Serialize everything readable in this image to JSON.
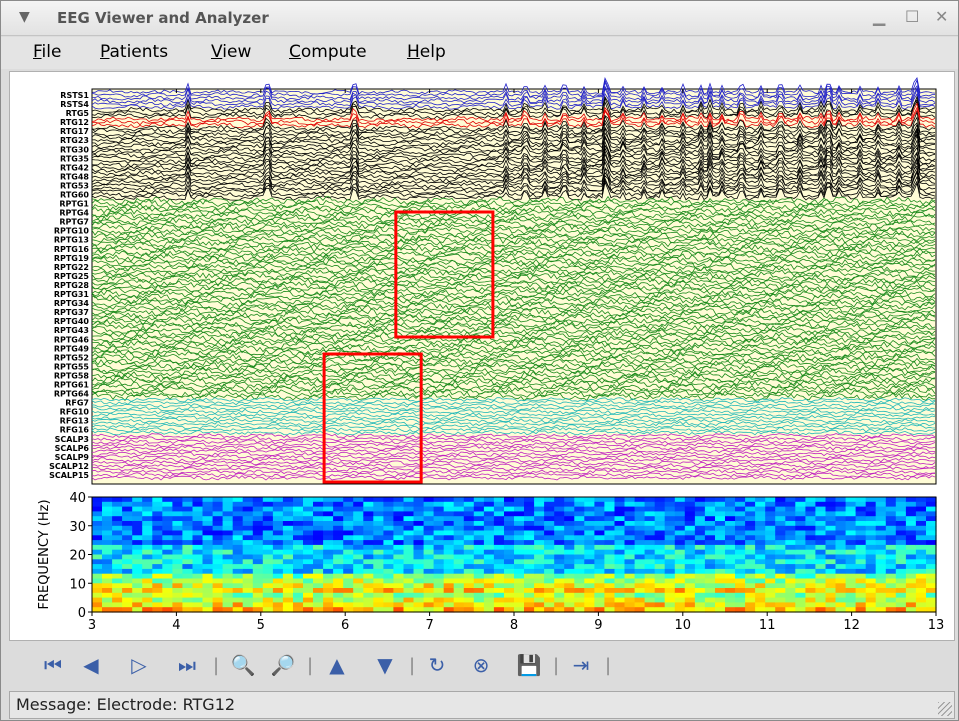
{
  "window": {
    "title": "EEG Viewer and Analyzer"
  },
  "menu": [
    {
      "first": "F",
      "rest": "ile"
    },
    {
      "first": "P",
      "rest": "atients"
    },
    {
      "first": "V",
      "rest": "iew"
    },
    {
      "first": "C",
      "rest": "ompute"
    },
    {
      "first": "H",
      "rest": "elp"
    }
  ],
  "channels": [
    "RSTS1",
    "RSTS4",
    "RTG5",
    "RTG12",
    "RTG17",
    "RTG23",
    "RTG30",
    "RTG35",
    "RTG42",
    "RTG48",
    "RTG53",
    "RTG60",
    "RPTG1",
    "RPTG4",
    "RPTG7",
    "RPTG10",
    "RPTG13",
    "RPTG16",
    "RPTG19",
    "RPTG22",
    "RPTG25",
    "RPTG28",
    "RPTG31",
    "RPTG34",
    "RPTG37",
    "RPTG40",
    "RPTG43",
    "RPTG46",
    "RPTG49",
    "RPTG52",
    "RPTG55",
    "RPTG58",
    "RPTG61",
    "RPTG64",
    "RFG7",
    "RFG10",
    "RFG13",
    "RFG16",
    "SCALP3",
    "SCALP6",
    "SCALP9",
    "SCALP12",
    "SCALP15"
  ],
  "chart_data": {
    "type": "heatmap",
    "xlim": [
      3,
      13
    ],
    "ylim": [
      0,
      40
    ],
    "x_ticks": [
      "3",
      "4",
      "5",
      "6",
      "7",
      "8",
      "9",
      "10",
      "11",
      "12",
      "13"
    ],
    "y_ticks": [
      "0",
      "10",
      "20",
      "30",
      "40"
    ],
    "ylabel": "FREQUENCY  (Hz)",
    "highlight_boxes": [
      {
        "x_from": 6.6,
        "x_to": 7.75
      },
      {
        "x_from": 5.75,
        "x_to": 6.9
      }
    ],
    "colors": {
      "rsts": "#2020c8",
      "rtg": "#000000",
      "rtg12": "#e00000",
      "rptg": "#1a8a1a",
      "rfg": "#20b8b8",
      "scalp": "#c020c0",
      "box": "#ff0000"
    }
  },
  "toolbar": [
    "first-icon",
    "prev-icon",
    "play-icon",
    "last-icon",
    "zoom-in-icon",
    "zoom-out-icon",
    "up-icon",
    "down-icon",
    "refresh-icon",
    "compute-icon",
    "save-icon",
    "export-icon"
  ],
  "status": {
    "message": "Message: Electrode: RTG12"
  }
}
